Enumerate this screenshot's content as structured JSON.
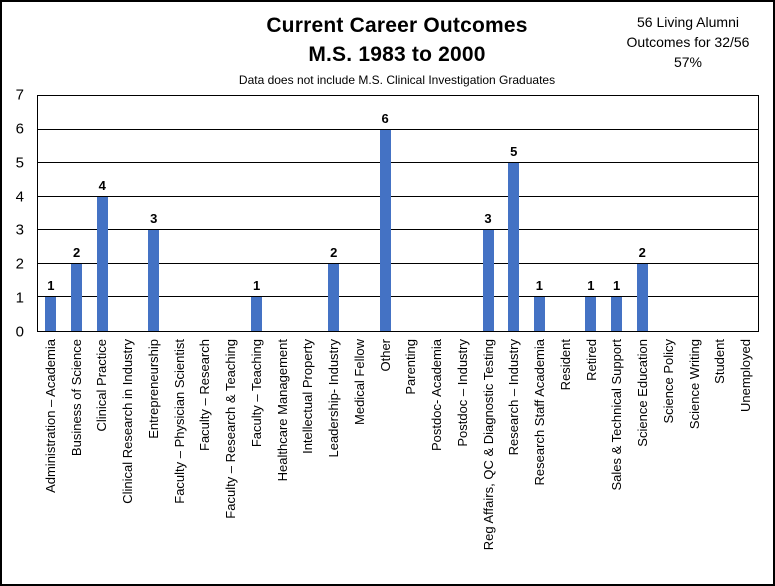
{
  "title": {
    "line1": "Current Career Outcomes",
    "line2": "M.S. 1983 to 2000"
  },
  "subtitle": "Data does not include M.S. Clinical Investigation Graduates",
  "annotation": {
    "line1": "56 Living Alumni",
    "line2": "Outcomes for 32/56",
    "line3": "57%"
  },
  "colors": {
    "bar": "#4472C4",
    "gridline": "#000000",
    "text": "#000000",
    "background": "#ffffff"
  },
  "chart_data": {
    "type": "bar",
    "title": "Current Career Outcomes M.S. 1983 to 2000",
    "subtitle": "Data does not include M.S. Clinical Investigation Graduates",
    "categories": [
      "Administration – Academia",
      "Business of Science",
      "Clinical Practice",
      "Clinical Research in Industry",
      "Entrepreneurship",
      "Faculty – Physician Scientist",
      "Faculty – Research",
      "Faculty – Research & Teaching",
      "Faculty – Teaching",
      "Healthcare Management",
      "Intellectual Property",
      "Leadership- Industry",
      "Medical Fellow",
      "Other",
      "Parenting",
      "Postdoc- Academia",
      "Postdoc – Industry",
      "Reg Affairs, QC & Diagnostic Testing",
      "Research – Industry",
      "Research Staff Academia",
      "Resident",
      "Retired",
      "Sales & Technical Support",
      "Science Education",
      "Science Policy",
      "Science Writing",
      "Student",
      "Unemployed"
    ],
    "values": [
      1,
      2,
      4,
      0,
      3,
      0,
      0,
      0,
      1,
      0,
      0,
      2,
      0,
      6,
      0,
      0,
      0,
      3,
      5,
      1,
      0,
      1,
      1,
      2,
      0,
      0,
      0,
      0
    ],
    "xlabel": "",
    "ylabel": "",
    "ylim": [
      0,
      7
    ],
    "yticks": [
      0,
      1,
      2,
      3,
      4,
      5,
      6,
      7
    ],
    "grid": true,
    "legend": false,
    "data_labels": "shown above non-zero bars"
  }
}
